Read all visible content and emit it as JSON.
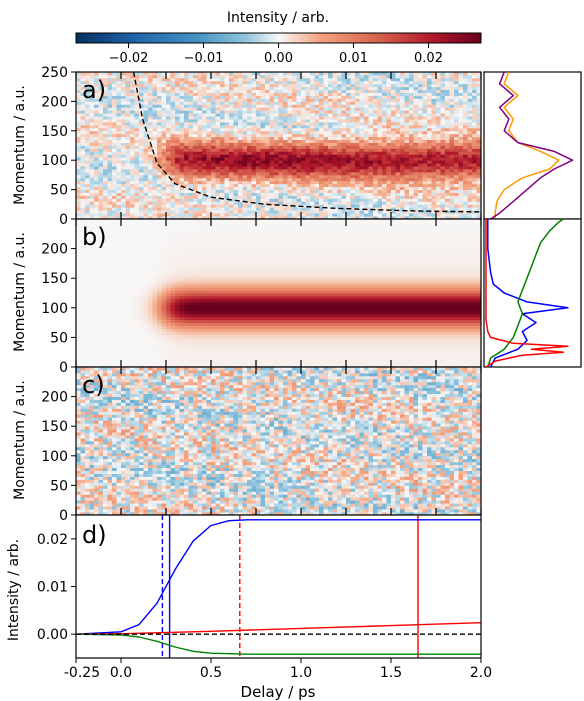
{
  "colorbar": {
    "label": "Intensity / arb.",
    "range": [
      -0.027,
      0.027
    ],
    "ticks": [
      -0.02,
      -0.01,
      0.0,
      0.01,
      0.02
    ],
    "tick_labels": [
      "−0.02",
      "−0.01",
      "0.00",
      "0.01",
      "0.02"
    ],
    "colormap": "RdBu_r",
    "colors": {
      "low": "#053061",
      "mid": "#f7f7f7",
      "high": "#67001f"
    }
  },
  "chart_data": [
    {
      "panel_label": "a)",
      "type": "heatmap",
      "xlabel": "",
      "ylabel": "Momentum / a.u.",
      "ylim": [
        0,
        250
      ],
      "yticks": [
        0,
        50,
        100,
        150,
        200,
        250
      ],
      "xlim": [
        -0.25,
        2.0
      ],
      "x_range_shown": [
        -0.25,
        2.0
      ],
      "description_values": {
        "feature_center_momentum": 100,
        "feature_width_momentum": 30,
        "onset_delay": 0.25,
        "peak_intensity": 0.022
      },
      "overlay_dashed_curve": {
        "color": "#000000",
        "x": [
          0.07,
          0.12,
          0.2,
          0.3,
          0.5,
          0.8,
          1.2,
          1.6,
          2.0
        ],
        "y": [
          250,
          170,
          95,
          60,
          37,
          25,
          18,
          14,
          12
        ]
      },
      "noise": true
    },
    {
      "panel_label": "b)",
      "type": "heatmap",
      "xlabel": "",
      "ylabel": "Momentum / a.u.",
      "ylim": [
        0,
        250
      ],
      "yticks": [
        0,
        50,
        100,
        150,
        200
      ],
      "xlim": [
        -0.25,
        2.0
      ],
      "description_values": {
        "feature_center_momentum": 100,
        "feature_width_momentum": 28,
        "onset_delay": 0.25,
        "peak_intensity": 0.027
      },
      "noise": false
    },
    {
      "panel_label": "c)",
      "type": "heatmap",
      "xlabel": "",
      "ylabel": "Momentum / a.u.",
      "ylim": [
        0,
        250
      ],
      "yticks": [
        0,
        50,
        100,
        150,
        200
      ],
      "xlim": [
        -0.25,
        2.0
      ],
      "description_values": {
        "residual_amplitude": 0.006
      },
      "noise": true
    },
    {
      "panel_label": "d)",
      "type": "line",
      "xlabel": "Delay / ps",
      "ylabel": "Intensity / arb.",
      "xlim": [
        -0.25,
        2.0
      ],
      "ylim": [
        -0.005,
        0.025
      ],
      "xticks": [
        -0.25,
        0.0,
        0.5,
        1.0,
        1.5,
        2.0
      ],
      "xtick_labels": [
        "-0.25",
        "0.0",
        "0.5",
        "1.0",
        "1.5",
        "2.0"
      ],
      "yticks": [
        0.0,
        0.01,
        0.02
      ],
      "ytick_labels": [
        "0.00",
        "0.01",
        "0.02"
      ],
      "series": [
        {
          "color": "#0000ff",
          "x": [
            -0.25,
            0.0,
            0.1,
            0.2,
            0.3,
            0.4,
            0.5,
            0.6,
            0.7,
            1.0,
            1.5,
            2.0
          ],
          "y": [
            0.0,
            0.0005,
            0.002,
            0.0065,
            0.0135,
            0.0195,
            0.0228,
            0.0238,
            0.024,
            0.024,
            0.024,
            0.024
          ]
        },
        {
          "color": "#ff0000",
          "x": [
            -0.25,
            0.0,
            0.5,
            1.0,
            1.5,
            2.0
          ],
          "y": [
            0.0,
            0.0001,
            0.0006,
            0.0012,
            0.0018,
            0.0024
          ]
        },
        {
          "color": "#008000",
          "x": [
            -0.25,
            0.0,
            0.1,
            0.2,
            0.3,
            0.4,
            0.5,
            0.7,
            1.0,
            2.0
          ],
          "y": [
            0.0,
            -0.0002,
            -0.0006,
            -0.0015,
            -0.0027,
            -0.0036,
            -0.004,
            -0.0042,
            -0.0042,
            -0.0042
          ]
        },
        {
          "color": "#000000",
          "dashed": true,
          "x": [
            -0.25,
            2.0
          ],
          "y": [
            0.0,
            0.0
          ]
        }
      ],
      "vlines": [
        {
          "x": 0.23,
          "color": "#0000ff",
          "dashed": true
        },
        {
          "x": 0.27,
          "color": "#0000ff",
          "dashed": false
        },
        {
          "x": 0.66,
          "color": "#ff0000",
          "dashed": true
        },
        {
          "x": 1.65,
          "color": "#ff0000",
          "dashed": false
        }
      ]
    },
    {
      "panel": "a-side",
      "type": "line",
      "orientation": "vertical-profile",
      "ylim": [
        0,
        250
      ],
      "series": [
        {
          "color": "#ff9900",
          "momentum": [
            0,
            10,
            30,
            50,
            70,
            85,
            100,
            115,
            130,
            150,
            170,
            190,
            210,
            230,
            250
          ],
          "value": [
            0.1,
            0.1,
            0.12,
            0.2,
            0.4,
            0.7,
            0.8,
            0.6,
            0.35,
            0.25,
            0.3,
            0.2,
            0.35,
            0.2,
            0.25
          ]
        },
        {
          "color": "#800080",
          "momentum": [
            0,
            10,
            30,
            50,
            70,
            85,
            100,
            115,
            130,
            150,
            170,
            190,
            210,
            230,
            250
          ],
          "value": [
            0.05,
            0.15,
            0.3,
            0.45,
            0.6,
            0.75,
            0.95,
            0.75,
            0.35,
            0.2,
            0.25,
            0.15,
            0.3,
            0.15,
            0.2
          ]
        }
      ]
    },
    {
      "panel": "b-side",
      "type": "line",
      "orientation": "vertical-profile",
      "ylim": [
        0,
        250
      ],
      "series": [
        {
          "color": "#0000ff",
          "momentum": [
            0,
            15,
            30,
            45,
            60,
            75,
            90,
            100,
            110,
            125,
            140,
            160,
            200,
            250
          ],
          "value": [
            0.05,
            0.1,
            0.35,
            0.45,
            0.4,
            0.55,
            0.4,
            0.9,
            0.45,
            0.2,
            0.08,
            0.05,
            0.02,
            0.02
          ]
        },
        {
          "color": "#008000",
          "momentum": [
            0,
            15,
            30,
            50,
            70,
            90,
            110,
            130,
            150,
            170,
            190,
            210,
            230,
            245,
            250
          ],
          "value": [
            0.02,
            0.05,
            0.2,
            0.3,
            0.35,
            0.4,
            0.35,
            0.4,
            0.45,
            0.5,
            0.55,
            0.6,
            0.7,
            0.8,
            0.85
          ]
        },
        {
          "color": "#ff0000",
          "momentum": [
            0,
            10,
            20,
            25,
            30,
            35,
            40,
            50,
            60,
            80,
            120,
            200,
            250
          ],
          "value": [
            0.0,
            0.1,
            0.4,
            0.85,
            0.5,
            0.9,
            0.3,
            0.05,
            0.02,
            0.0,
            0.0,
            0.0,
            0.0
          ]
        }
      ]
    }
  ]
}
